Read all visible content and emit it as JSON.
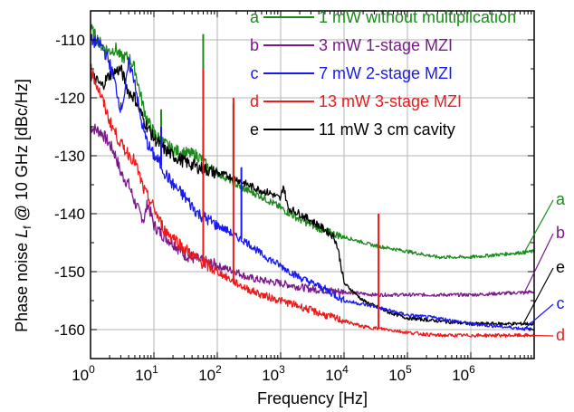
{
  "chart_data": {
    "type": "line",
    "xlabel": "Frequency [Hz]",
    "ylabel_main": "Phase noise ",
    "ylabel_symbol": "L",
    "ylabel_subscript": "f",
    "ylabel_tail": " @ 10 GHz [dBc/Hz]",
    "x_scale": "log",
    "xlim": [
      1,
      10000000
    ],
    "ylim": [
      -165,
      -105
    ],
    "yticks": [
      -110,
      -120,
      -130,
      -140,
      -150,
      -160
    ],
    "xtick_labels": [
      {
        "base": "10",
        "exp": "0"
      },
      {
        "base": "10",
        "exp": "1"
      },
      {
        "base": "10",
        "exp": "2"
      },
      {
        "base": "10",
        "exp": "3"
      },
      {
        "base": "10",
        "exp": "4"
      },
      {
        "base": "10",
        "exp": "5"
      },
      {
        "base": "10",
        "exp": "6"
      }
    ],
    "grid": true,
    "legend_position": "top-right",
    "series": [
      {
        "letter": "a",
        "name": "1 mW without multiplication",
        "color": "#1a8a1a",
        "end_letter": "a",
        "x": [
          1,
          1.5,
          2,
          2.5,
          3,
          4,
          5,
          6,
          7,
          8,
          10,
          12,
          15,
          20,
          30,
          50,
          60,
          70,
          100,
          150,
          200,
          300,
          500,
          1000,
          2000,
          5000,
          10000,
          30000,
          100000,
          300000,
          1000000,
          10000000
        ],
        "y": [
          -108,
          -111,
          -112,
          -111.5,
          -113,
          -113,
          -115,
          -119,
          -122,
          -124,
          -126,
          -127,
          -128,
          -129,
          -129.5,
          -130,
          -131,
          -132,
          -133,
          -134,
          -135,
          -136,
          -137,
          -139,
          -141,
          -143,
          -144,
          -145.5,
          -146.5,
          -147.5,
          -147.5,
          -146.5
        ],
        "spikes": [
          {
            "x": 60,
            "y": -109
          },
          {
            "x": 180,
            "y": -121
          },
          {
            "x": 13,
            "y": -122
          }
        ]
      },
      {
        "letter": "b",
        "name": "3 mW 1-stage MZI",
        "color": "#7a1a8a",
        "end_letter": "b",
        "x": [
          1,
          1.5,
          2,
          2.5,
          3,
          4,
          5,
          6,
          7,
          8,
          10,
          12,
          15,
          20,
          30,
          50,
          100,
          200,
          300,
          500,
          1000,
          3000,
          10000,
          30000,
          100000,
          1000000,
          10000000
        ],
        "y": [
          -125,
          -126,
          -128,
          -130,
          -133,
          -135,
          -138,
          -140,
          -141,
          -138,
          -142,
          -143,
          -144,
          -145,
          -147,
          -148,
          -149,
          -150,
          -151,
          -151.5,
          -152,
          -153,
          -153.5,
          -154,
          -154,
          -154,
          -153.5
        ],
        "spikes": []
      },
      {
        "letter": "c",
        "name": "7 mW 2-stage MZI",
        "color": "#1a1aee",
        "end_letter": "c",
        "x": [
          1,
          1.5,
          2,
          2.5,
          3,
          3.5,
          4,
          5,
          6,
          7,
          8,
          10,
          12,
          15,
          20,
          30,
          50,
          100,
          150,
          200,
          300,
          500,
          1000,
          2000,
          5000,
          10000,
          30000,
          100000,
          300000,
          1000000,
          10000000
        ],
        "y": [
          -110,
          -111,
          -114,
          -118,
          -122,
          -119,
          -114,
          -117,
          -123,
          -126,
          -128,
          -130,
          -131,
          -133,
          -135,
          -137,
          -140,
          -142,
          -143,
          -144,
          -145,
          -147,
          -149,
          -151,
          -153,
          -155,
          -156,
          -157.5,
          -158,
          -159,
          -160
        ],
        "spikes": [
          {
            "x": 13,
            "y": -125
          },
          {
            "x": 60,
            "y": -125
          },
          {
            "x": 240,
            "y": -132
          }
        ]
      },
      {
        "letter": "d",
        "name": "13 mW 3-stage MZI",
        "color": "#ee1a1a",
        "end_letter": "d",
        "x": [
          1,
          1.5,
          2,
          3,
          5,
          7,
          10,
          12,
          15,
          20,
          30,
          50,
          100,
          200,
          300,
          500,
          1000,
          2000,
          5000,
          10000,
          20000,
          50000,
          100000,
          300000,
          1000000,
          10000000
        ],
        "y": [
          -115,
          -120,
          -124,
          -128,
          -131,
          -136,
          -139,
          -141,
          -143,
          -144,
          -146,
          -148,
          -150,
          -152,
          -153,
          -154,
          -155,
          -156,
          -157.5,
          -158.5,
          -159.5,
          -160,
          -160.5,
          -161,
          -161,
          -161
        ],
        "spikes": [
          {
            "x": 60,
            "y": -115
          },
          {
            "x": 180,
            "y": -120
          },
          {
            "x": 35000,
            "y": -140
          }
        ]
      },
      {
        "letter": "e",
        "name": "11 mW 3 cm cavity",
        "color": "#000000",
        "end_letter": "e",
        "x": [
          1,
          1.5,
          2,
          3,
          4,
          5,
          7,
          10,
          15,
          20,
          30,
          50,
          100,
          150,
          200,
          300,
          500,
          700,
          1000,
          1100,
          1300,
          2000,
          4000,
          7000,
          8000,
          9000,
          10000,
          20000,
          50000,
          100000,
          300000,
          1000000,
          10000000
        ],
        "y": [
          -116,
          -118,
          -116,
          -115,
          -119,
          -120,
          -124,
          -127,
          -129,
          -130,
          -131,
          -132,
          -133,
          -133.5,
          -134,
          -135,
          -136,
          -136.5,
          -137.5,
          -135,
          -139,
          -140,
          -142,
          -144,
          -146,
          -149,
          -152,
          -155,
          -157,
          -158,
          -158.5,
          -159,
          -159
        ],
        "spikes": []
      }
    ]
  }
}
